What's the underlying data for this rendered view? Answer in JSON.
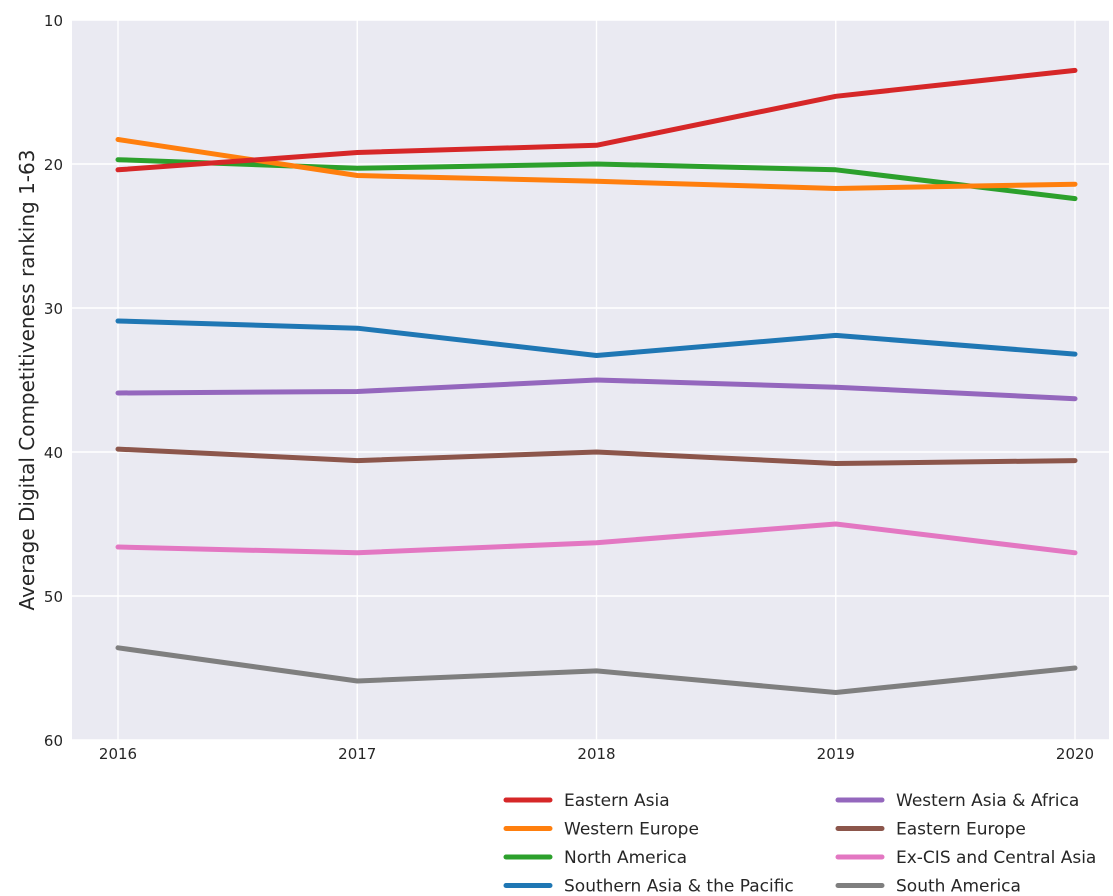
{
  "chart_data": {
    "type": "line",
    "title": "",
    "xlabel": "",
    "ylabel": "Average Digital Competitiveness ranking 1-63",
    "x": [
      2016,
      2017,
      2018,
      2019,
      2020
    ],
    "x_tick_labels": [
      "2016",
      "2017",
      "2018",
      "2019",
      "2020"
    ],
    "ylim": [
      10,
      60
    ],
    "y_inverted": true,
    "y_ticks": [
      10,
      20,
      30,
      40,
      50,
      60
    ],
    "y_tick_labels": [
      "10",
      "20",
      "30",
      "40",
      "50",
      "60"
    ],
    "grid": true,
    "background": "#eaeaf2",
    "legend_position": "bottom-right",
    "series": [
      {
        "name": "Eastern Asia",
        "color": "#d62728",
        "values": [
          20.4,
          19.2,
          18.7,
          15.3,
          13.5
        ]
      },
      {
        "name": "Western Europe",
        "color": "#ff7f0e",
        "values": [
          18.3,
          20.8,
          21.2,
          21.7,
          21.4
        ]
      },
      {
        "name": "North America",
        "color": "#2ca02c",
        "values": [
          19.7,
          20.3,
          20.0,
          20.4,
          22.4
        ]
      },
      {
        "name": "Southern Asia & the Pacific",
        "color": "#1f77b4",
        "values": [
          30.9,
          31.4,
          33.3,
          31.9,
          33.2
        ]
      },
      {
        "name": "Western Asia & Africa",
        "color": "#9467bd",
        "values": [
          35.9,
          35.8,
          35.0,
          35.5,
          36.3
        ]
      },
      {
        "name": "Eastern Europe",
        "color": "#8c564b",
        "values": [
          39.8,
          40.6,
          40.0,
          40.8,
          40.6
        ]
      },
      {
        "name": "Ex-CIS and Central Asia",
        "color": "#e377c2",
        "values": [
          46.6,
          47.0,
          46.3,
          45.0,
          47.0
        ]
      },
      {
        "name": "South America",
        "color": "#7f7f7f",
        "values": [
          53.6,
          55.9,
          55.2,
          56.7,
          55.0
        ]
      }
    ]
  }
}
